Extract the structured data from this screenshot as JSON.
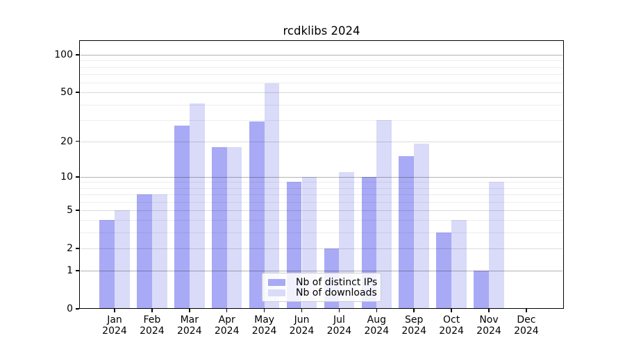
{
  "chart_data": {
    "type": "bar",
    "title": "rcdklibs 2024",
    "categories": [
      "Jan",
      "Feb",
      "Mar",
      "Apr",
      "May",
      "Jun",
      "Jul",
      "Aug",
      "Sep",
      "Oct",
      "Nov",
      "Dec"
    ],
    "year_label": "2024",
    "series": [
      {
        "name": "Nb of distinct IPs",
        "color": "#a8aaf5",
        "values": [
          4,
          7,
          27,
          18,
          29,
          9,
          2,
          10,
          15,
          3,
          1,
          0
        ]
      },
      {
        "name": "Nb of downloads",
        "color": "#d9dbf9",
        "values": [
          5,
          7,
          41,
          18,
          59,
          10,
          11,
          30,
          19,
          4,
          9,
          0
        ]
      }
    ],
    "yscale": "log1p",
    "yticks": [
      0,
      1,
      2,
      5,
      10,
      20,
      50,
      100
    ],
    "ylim": [
      0,
      130
    ],
    "grid": "horizontal",
    "legend_position": "bottom-center-inside",
    "colors": {
      "axis": "#000000",
      "background": "#ffffff"
    }
  }
}
